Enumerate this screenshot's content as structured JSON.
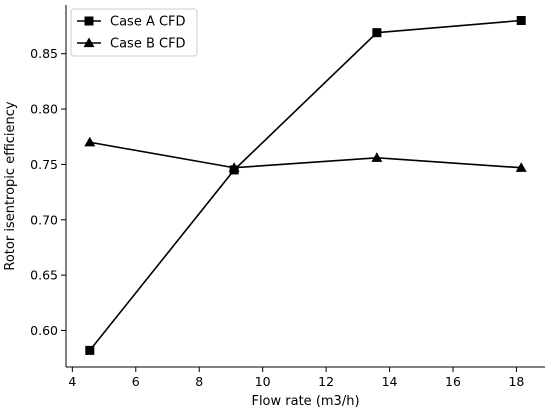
{
  "chart_data": {
    "type": "line",
    "xlabel": "Flow rate (m3/h)",
    "ylabel": "Rotor isentropic efficiency",
    "xlim": [
      3.8,
      18.9
    ],
    "ylim": [
      0.567,
      0.894
    ],
    "xticks": [
      4,
      6,
      8,
      10,
      12,
      14,
      16,
      18
    ],
    "yticks": [
      0.6,
      0.65,
      0.7,
      0.75,
      0.8,
      0.85
    ],
    "ytick_labels": [
      "0.60",
      "0.65",
      "0.70",
      "0.75",
      "0.80",
      "0.85"
    ],
    "grid": false,
    "legend_position": "top-left",
    "series": [
      {
        "name": "Case A CFD",
        "marker": "square",
        "color": "#000000",
        "x": [
          4.55,
          9.1,
          13.6,
          18.15
        ],
        "y": [
          0.582,
          0.745,
          0.869,
          0.88
        ]
      },
      {
        "name": "Case B CFD",
        "marker": "triangle",
        "color": "#000000",
        "x": [
          4.55,
          9.1,
          13.6,
          18.15
        ],
        "y": [
          0.77,
          0.747,
          0.756,
          0.747
        ]
      }
    ]
  }
}
